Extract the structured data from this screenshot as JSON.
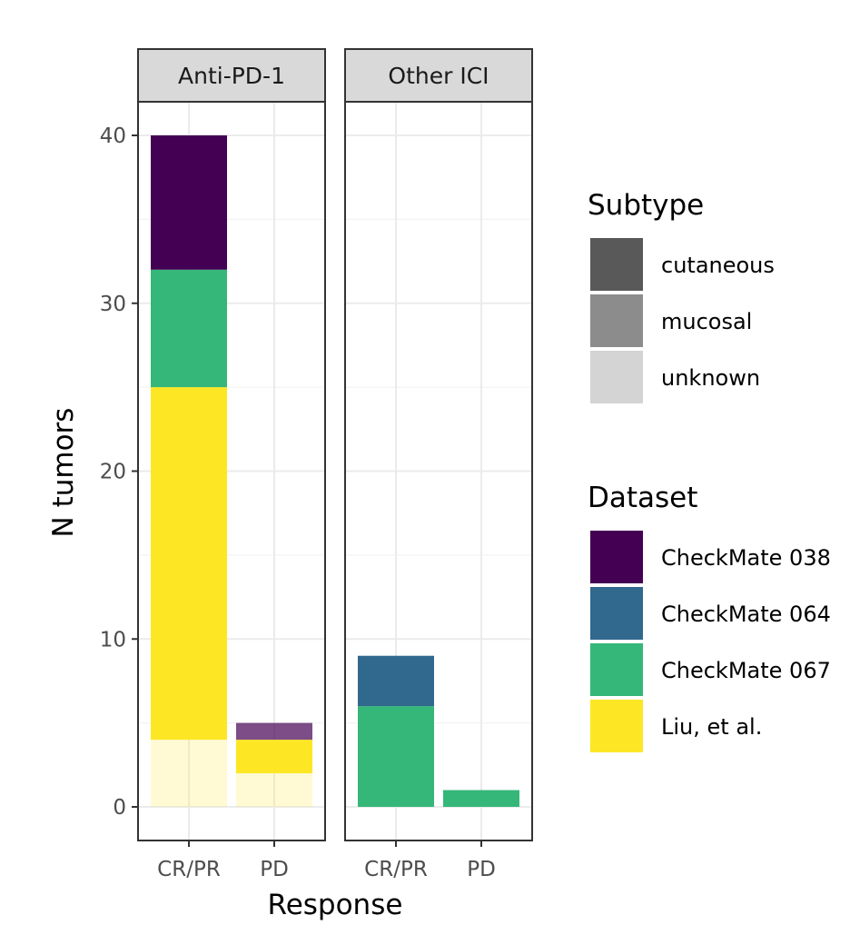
{
  "chart_data": {
    "type": "bar",
    "stacked": true,
    "xlabel": "Response",
    "ylabel": "N tumors",
    "ylim": [
      0,
      42
    ],
    "yticks": [
      0,
      10,
      20,
      30,
      40
    ],
    "categories": [
      "CR/PR",
      "PD"
    ],
    "grid": true,
    "legend_placement": "right",
    "panels": [
      {
        "label": "Anti-PD-1",
        "bars": [
          {
            "category": "CR/PR",
            "segments": [
              {
                "dataset": "Liu, et al.",
                "subtype": "unknown",
                "value": 4
              },
              {
                "dataset": "Liu, et al.",
                "subtype": "cutaneous",
                "value": 21
              },
              {
                "dataset": "CheckMate 067",
                "subtype": "cutaneous",
                "value": 7
              },
              {
                "dataset": "CheckMate 038",
                "subtype": "cutaneous",
                "value": 8
              }
            ]
          },
          {
            "category": "PD",
            "segments": [
              {
                "dataset": "Liu, et al.",
                "subtype": "unknown",
                "value": 2
              },
              {
                "dataset": "Liu, et al.",
                "subtype": "cutaneous",
                "value": 2
              },
              {
                "dataset": "CheckMate 038",
                "subtype": "mucosal",
                "value": 1
              }
            ]
          }
        ]
      },
      {
        "label": "Other ICI",
        "bars": [
          {
            "category": "CR/PR",
            "segments": [
              {
                "dataset": "CheckMate 067",
                "subtype": "cutaneous",
                "value": 6
              },
              {
                "dataset": "CheckMate 064",
                "subtype": "cutaneous",
                "value": 3
              }
            ]
          },
          {
            "category": "PD",
            "segments": [
              {
                "dataset": "CheckMate 067",
                "subtype": "cutaneous",
                "value": 1
              }
            ]
          }
        ]
      }
    ],
    "legends": {
      "subtype": {
        "title": "Subtype",
        "items": [
          {
            "label": "cutaneous",
            "color": "#595959",
            "alpha": 1.0
          },
          {
            "label": "mucosal",
            "color": "#8c8c8c",
            "alpha": 0.7
          },
          {
            "label": "unknown",
            "color": "#d4d4d4",
            "alpha": 0.2
          }
        ]
      },
      "dataset": {
        "title": "Dataset",
        "items": [
          {
            "label": "CheckMate 038",
            "color": "#440154"
          },
          {
            "label": "CheckMate 064",
            "color": "#31688e"
          },
          {
            "label": "CheckMate 067",
            "color": "#35b779"
          },
          {
            "label": "Liu, et al.",
            "color": "#fde725"
          }
        ]
      }
    }
  }
}
